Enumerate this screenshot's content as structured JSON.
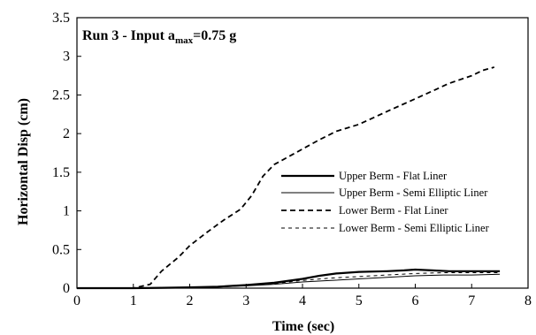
{
  "chart_data": {
    "type": "line",
    "title_main": "Run 3 - Input a",
    "title_sub": "max",
    "title_suffix": "=0.75 g",
    "xlabel": "Time (sec)",
    "ylabel": "Horizontal Disp (cm)",
    "xlim": [
      0,
      8
    ],
    "ylim": [
      0,
      3.5
    ],
    "xticks": [
      0,
      1,
      2,
      3,
      4,
      5,
      6,
      7,
      8
    ],
    "yticks": [
      0,
      0.5,
      1,
      1.5,
      2,
      2.5,
      3,
      3.5
    ],
    "ytick_labels": [
      "0",
      "0.5",
      "1",
      "1.5",
      "2",
      "2.5",
      "3",
      "3.5"
    ],
    "grid": false,
    "legend_position": "center-right",
    "series": [
      {
        "name": "Upper Berm - Flat Liner",
        "style": "thick-solid",
        "x": [
          0,
          1.0,
          1.5,
          2.0,
          2.5,
          3.0,
          3.5,
          4.0,
          4.3,
          4.6,
          5.0,
          5.5,
          5.8,
          6.0,
          6.3,
          6.6,
          7.0,
          7.5
        ],
        "y": [
          0,
          0,
          0.005,
          0.01,
          0.02,
          0.04,
          0.07,
          0.12,
          0.16,
          0.19,
          0.21,
          0.22,
          0.23,
          0.24,
          0.23,
          0.22,
          0.22,
          0.22
        ]
      },
      {
        "name": "Upper Berm - Semi Elliptic Liner",
        "style": "thin-solid",
        "x": [
          0,
          1.0,
          1.5,
          2.0,
          2.5,
          3.0,
          3.5,
          4.0,
          4.5,
          5.0,
          5.5,
          6.0,
          6.5,
          7.0,
          7.5
        ],
        "y": [
          0,
          0,
          0.003,
          0.008,
          0.015,
          0.03,
          0.05,
          0.08,
          0.1,
          0.12,
          0.14,
          0.16,
          0.17,
          0.17,
          0.18
        ]
      },
      {
        "name": "Lower Berm - Flat Liner",
        "style": "thick-dashed",
        "x": [
          0,
          1.0,
          1.3,
          1.5,
          1.8,
          2.0,
          2.3,
          2.6,
          2.9,
          3.1,
          3.3,
          3.5,
          3.8,
          4.0,
          4.3,
          4.6,
          5.0,
          5.3,
          5.6,
          6.0,
          6.3,
          6.6,
          7.0,
          7.2,
          7.4
        ],
        "y": [
          0,
          0,
          0.05,
          0.22,
          0.4,
          0.55,
          0.72,
          0.88,
          1.02,
          1.2,
          1.45,
          1.6,
          1.72,
          1.8,
          1.92,
          2.03,
          2.12,
          2.22,
          2.32,
          2.45,
          2.55,
          2.65,
          2.75,
          2.82,
          2.86
        ]
      },
      {
        "name": "Lower Berm - Semi Elliptic Liner",
        "style": "thin-dashed",
        "x": [
          0,
          1.0,
          1.5,
          2.0,
          2.5,
          3.0,
          3.5,
          4.0,
          4.5,
          5.0,
          5.5,
          6.0,
          6.5,
          7.0,
          7.5
        ],
        "y": [
          0,
          0,
          0.004,
          0.009,
          0.018,
          0.035,
          0.06,
          0.1,
          0.13,
          0.15,
          0.17,
          0.19,
          0.2,
          0.2,
          0.2
        ]
      }
    ]
  }
}
